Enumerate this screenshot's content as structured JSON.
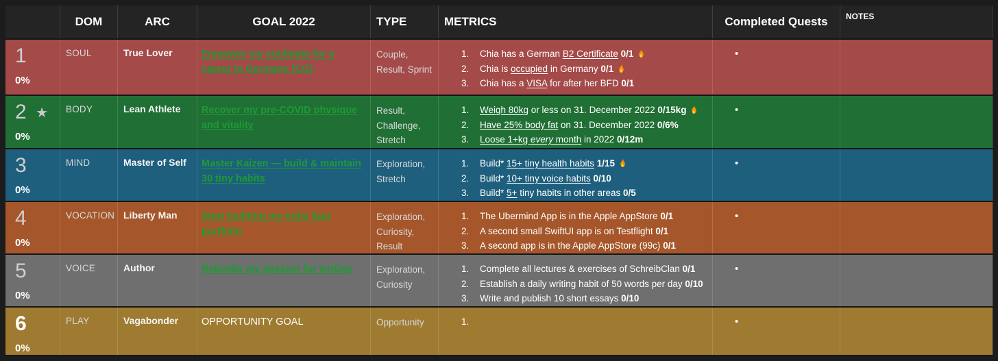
{
  "header": {
    "cols": [
      "",
      "DOM",
      "ARC",
      "GOAL 2022",
      "TYPE",
      "METRICS",
      "Completed Quests",
      "NOTES"
    ]
  },
  "colors": {
    "link_green": "#1d9b33",
    "header_bg": "#242424",
    "page_bg": "#1c1c1c",
    "row_soul": "#a44a48",
    "row_body": "#206f35",
    "row_mind": "#1e5f7e",
    "row_vocation": "#a5572b",
    "row_voice": "#6f6f6f",
    "row_play": "#9e7b31"
  },
  "icons": {
    "star": "★",
    "bullet": "•",
    "fire": "fire-icon"
  },
  "rows": [
    {
      "number": "1",
      "starred": false,
      "progress": "0%",
      "dom": "SOUL",
      "arc": "True Lover",
      "goal": {
        "text": "Empower my soulmate for a career in Germany (CG)",
        "is_link": true
      },
      "type": "Couple, Result, Sprint",
      "color": "#a44a48",
      "metrics": [
        [
          {
            "t": "Chia has a German "
          },
          {
            "t": "B2 Certificate",
            "u": true
          },
          {
            "t": " "
          },
          {
            "t": "0/1",
            "b": true
          },
          {
            "icon": "fire"
          }
        ],
        [
          {
            "t": "Chia is "
          },
          {
            "t": "occupied",
            "u": true
          },
          {
            "t": " in Germany "
          },
          {
            "t": "0/1",
            "b": true
          },
          {
            "icon": "fire"
          }
        ],
        [
          {
            "t": "Chia has a "
          },
          {
            "t": "VISA",
            "u": true
          },
          {
            "t": " for after her BFD "
          },
          {
            "t": "0/1",
            "b": true
          }
        ]
      ],
      "completed_quests_bullet": true,
      "notes": ""
    },
    {
      "number": "2",
      "starred": true,
      "progress": "0%",
      "dom": "BODY",
      "arc": "Lean Athlete",
      "goal": {
        "text": "Recover my pre-COVID physique and vitality",
        "is_link": true
      },
      "type": "Result, Challenge, Stretch",
      "color": "#206f35",
      "metrics": [
        [
          {
            "t": "Weigh 80kg",
            "u": true
          },
          {
            "t": " or less on 31. December 2022 "
          },
          {
            "t": "0/15kg",
            "b": true
          },
          {
            "icon": "fire"
          }
        ],
        [
          {
            "t": "Have 25% body fat",
            "u": true
          },
          {
            "t": " on 31. December 2022 "
          },
          {
            "t": "0/6%",
            "b": true
          }
        ],
        [
          {
            "t": "Loose 1+kg ",
            "u": true
          },
          {
            "t": "every",
            "u": true,
            "i": true
          },
          {
            "t": " month",
            "u": true
          },
          {
            "t": " in 2022 "
          },
          {
            "t": "0/12m",
            "b": true
          }
        ]
      ],
      "completed_quests_bullet": true,
      "notes": ""
    },
    {
      "number": "3",
      "starred": false,
      "progress": "0%",
      "dom": "MIND",
      "arc": "Master of Self",
      "goal": {
        "text": "Master Kaizen — build & maintain 30 tiny habits",
        "is_link": true
      },
      "type": "Exploration, Stretch",
      "color": "#1e5f7e",
      "metrics": [
        [
          {
            "t": "Build* "
          },
          {
            "t": "15+ tiny health habits",
            "u": true
          },
          {
            "t": " "
          },
          {
            "t": "1/15",
            "b": true
          },
          {
            "icon": "fire"
          }
        ],
        [
          {
            "t": "Build* "
          },
          {
            "t": "10+ tiny voice habits",
            "u": true
          },
          {
            "t": " "
          },
          {
            "t": "0/10",
            "b": true
          }
        ],
        [
          {
            "t": "Build* "
          },
          {
            "t": "5+",
            "u": true
          },
          {
            "t": " tiny habits in other areas "
          },
          {
            "t": "0/5",
            "b": true
          }
        ]
      ],
      "completed_quests_bullet": true,
      "notes": ""
    },
    {
      "number": "4",
      "starred": false,
      "progress": "0%",
      "dom": "VOCATION",
      "arc": "Liberty Man",
      "goal": {
        "text": "Start building my Indie App portfolio",
        "is_link": true
      },
      "type": "Exploration, Curiosity, Result",
      "color": "#a5572b",
      "metrics": [
        [
          {
            "t": "The Ubermind App is in the Apple AppStore "
          },
          {
            "t": "0/1",
            "b": true
          }
        ],
        [
          {
            "t": "A second small SwiftUI app is on "
          },
          {
            "t": "Testflight",
            "spell": true
          },
          {
            "t": " "
          },
          {
            "t": "0/1",
            "b": true
          }
        ],
        [
          {
            "t": "A second app is in the Apple AppStore (99c)  "
          },
          {
            "t": "0/1",
            "b": true
          }
        ]
      ],
      "completed_quests_bullet": true,
      "notes": ""
    },
    {
      "number": "5",
      "starred": false,
      "progress": "0%",
      "dom": "VOICE",
      "arc": "Author",
      "goal": {
        "text": "Rekindle my passion for writing",
        "is_link": true
      },
      "type": "Exploration, Curiosity",
      "color": "#6f6f6f",
      "metrics": [
        [
          {
            "t": "Complete all lectures & exercises of SchreibClan "
          },
          {
            "t": "0/1",
            "b": true
          }
        ],
        [
          {
            "t": "Establish a daily writing habit of 50 words per day "
          },
          {
            "t": "0/10",
            "b": true
          }
        ],
        [
          {
            "t": "Write and publish 10 short essays "
          },
          {
            "t": "0/10",
            "b": true
          }
        ]
      ],
      "completed_quests_bullet": true,
      "notes": ""
    },
    {
      "number": "6",
      "starred": false,
      "progress": "0%",
      "dom": "PLAY",
      "arc": "Vagabonder",
      "goal": {
        "text": "OPPORTUNITY GOAL",
        "is_link": false
      },
      "type": "Opportunity",
      "color": "#9e7b31",
      "metrics": [
        []
      ],
      "completed_quests_bullet": true,
      "notes": ""
    }
  ]
}
